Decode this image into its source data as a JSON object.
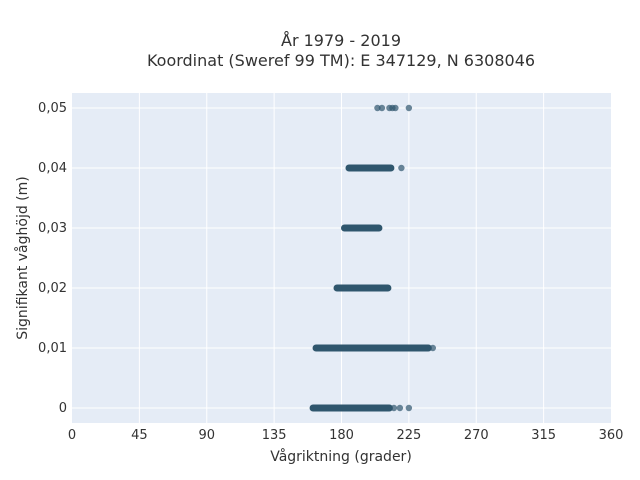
{
  "chart_data": {
    "type": "scatter",
    "title_line1": "År 1979 - 2019",
    "title_line2": "Koordinat (Sweref 99 TM): E 347129, N 6308046",
    "xlabel": "Vågriktning (grader)",
    "ylabel": "Signifikant våghöjd (m)",
    "xlim": [
      0,
      360
    ],
    "ylim": [
      -0.0025,
      0.0525
    ],
    "x_ticks": [
      0,
      45,
      90,
      135,
      180,
      225,
      270,
      315,
      360
    ],
    "x_tick_labels": [
      "0",
      "45",
      "90",
      "135",
      "180",
      "225",
      "270",
      "315",
      "360"
    ],
    "y_ticks": [
      0,
      0.01,
      0.02,
      0.03,
      0.04,
      0.05
    ],
    "y_tick_labels": [
      "0",
      "0,01",
      "0,02",
      "0,03",
      "0,04",
      "0,05"
    ],
    "grid": true,
    "colors": {
      "background": "#e5ecf6",
      "marker": "#2f566d",
      "grid": "#ffffff"
    },
    "series": [
      {
        "clusters": [
          {
            "y": 0.0,
            "x_min": 161,
            "x_max": 212,
            "outliers": [
              215,
              219,
              225
            ]
          },
          {
            "y": 0.01,
            "x_min": 163,
            "x_max": 238,
            "outliers": [
              241
            ]
          },
          {
            "y": 0.02,
            "x_min": 177,
            "x_max": 211,
            "outliers": []
          },
          {
            "y": 0.03,
            "x_min": 182,
            "x_max": 205,
            "outliers": []
          },
          {
            "y": 0.04,
            "x_min": 185,
            "x_max": 213,
            "outliers": [
              220
            ]
          },
          {
            "y": 0.05,
            "x_min": 204,
            "x_max": 204,
            "outliers": [
              207,
              212,
              214,
              216,
              225
            ]
          }
        ]
      }
    ]
  }
}
